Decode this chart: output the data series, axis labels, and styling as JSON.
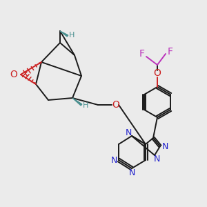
{
  "bg_color": "#ebebeb",
  "bond_color": "#1a1a1a",
  "N_color": "#2222cc",
  "O_color": "#cc2222",
  "F_color": "#bb33bb",
  "H_color": "#4a9090",
  "lw": 1.4,
  "figsize": [
    3.0,
    3.0
  ],
  "dpi": 100,
  "xlim": [
    0,
    300
  ],
  "ylim": [
    0,
    300
  ]
}
